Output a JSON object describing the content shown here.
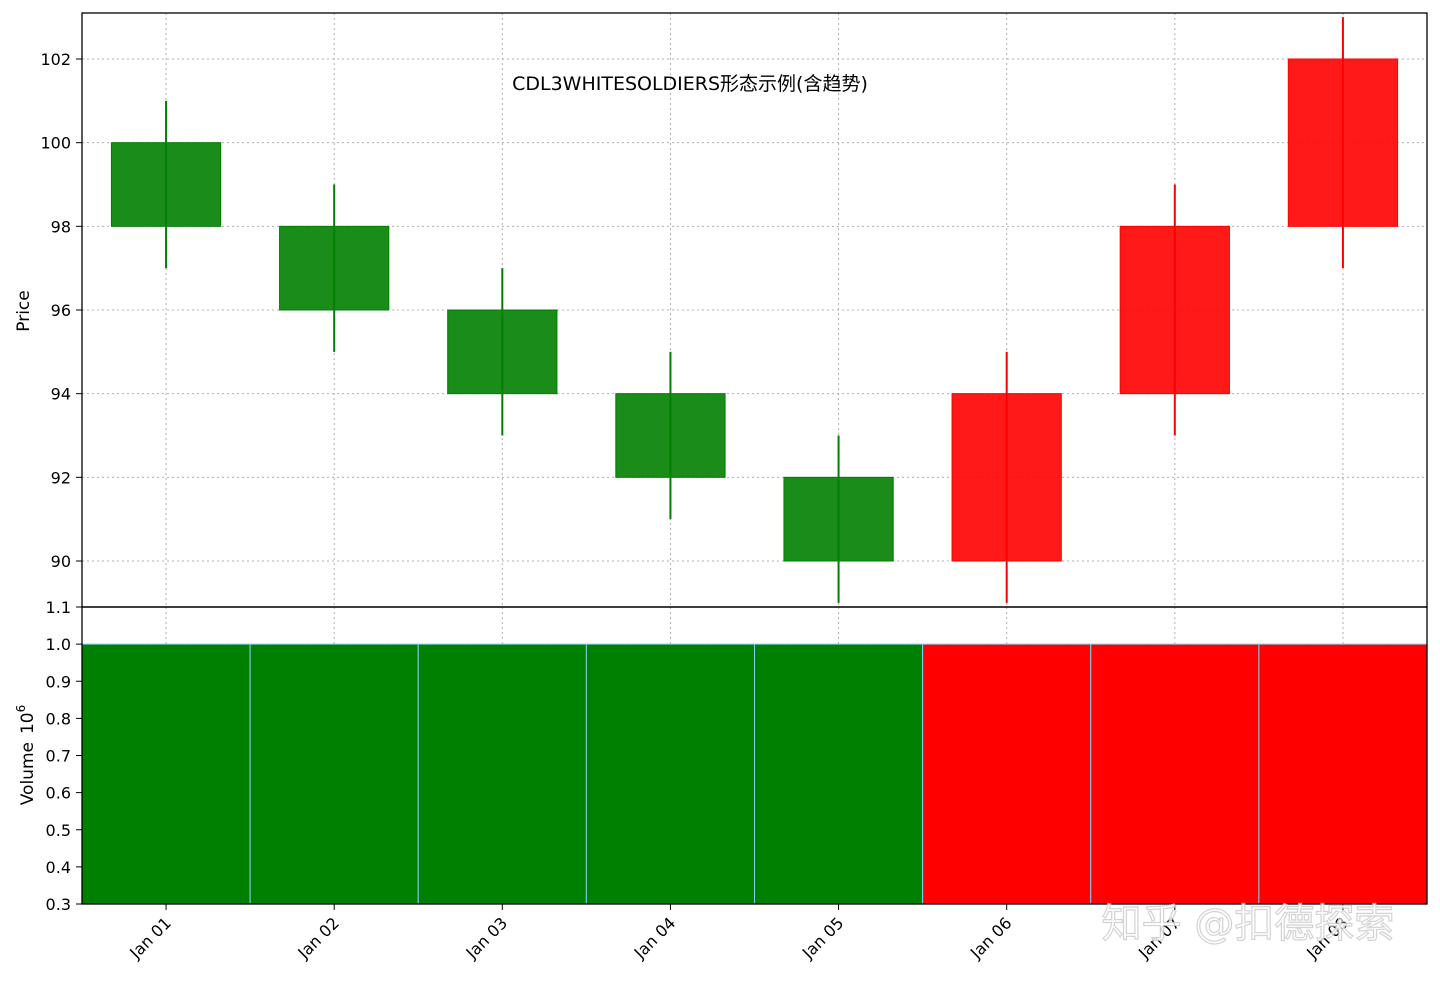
{
  "chart_data": {
    "type": "candlestick",
    "title": "CDL3WHITESOLDIERS形态示例(含趋势)",
    "categories": [
      "Jan 01",
      "Jan 02",
      "Jan 03",
      "Jan 04",
      "Jan 05",
      "Jan 06",
      "Jan 07",
      "Jan 08"
    ],
    "price_panel": {
      "ylabel": "Price",
      "ylim": [
        88.9,
        103.1
      ],
      "yticks": [
        90,
        92,
        94,
        96,
        98,
        100,
        102
      ],
      "grid": true,
      "candles": [
        {
          "open": 100,
          "high": 101,
          "low": 97,
          "close": 98
        },
        {
          "open": 98,
          "high": 99,
          "low": 95,
          "close": 96
        },
        {
          "open": 96,
          "high": 97,
          "low": 93,
          "close": 94
        },
        {
          "open": 94,
          "high": 95,
          "low": 91,
          "close": 92
        },
        {
          "open": 92,
          "high": 93,
          "low": 89,
          "close": 90
        },
        {
          "open": 90,
          "high": 95,
          "low": 89,
          "close": 94
        },
        {
          "open": 94,
          "high": 99,
          "low": 93,
          "close": 98
        },
        {
          "open": 98,
          "high": 103,
          "low": 97,
          "close": 102
        }
      ]
    },
    "volume_panel": {
      "ylabel": "Volume",
      "scale_label": "10",
      "scale_exponent": "6",
      "ylim": [
        0.3,
        1.1
      ],
      "yticks": [
        0.3,
        0.4,
        0.5,
        0.6,
        0.7,
        0.8,
        0.9,
        1.0,
        1.1
      ],
      "values": [
        1.0,
        1.0,
        1.0,
        1.0,
        1.0,
        1.0,
        1.0,
        1.0
      ]
    },
    "colors": {
      "down": "#008000",
      "up": "#ff0000",
      "grid": "#b0b0b0",
      "volume_edge": "#87ceeb"
    }
  },
  "watermark": "知乎 @扣德探索"
}
